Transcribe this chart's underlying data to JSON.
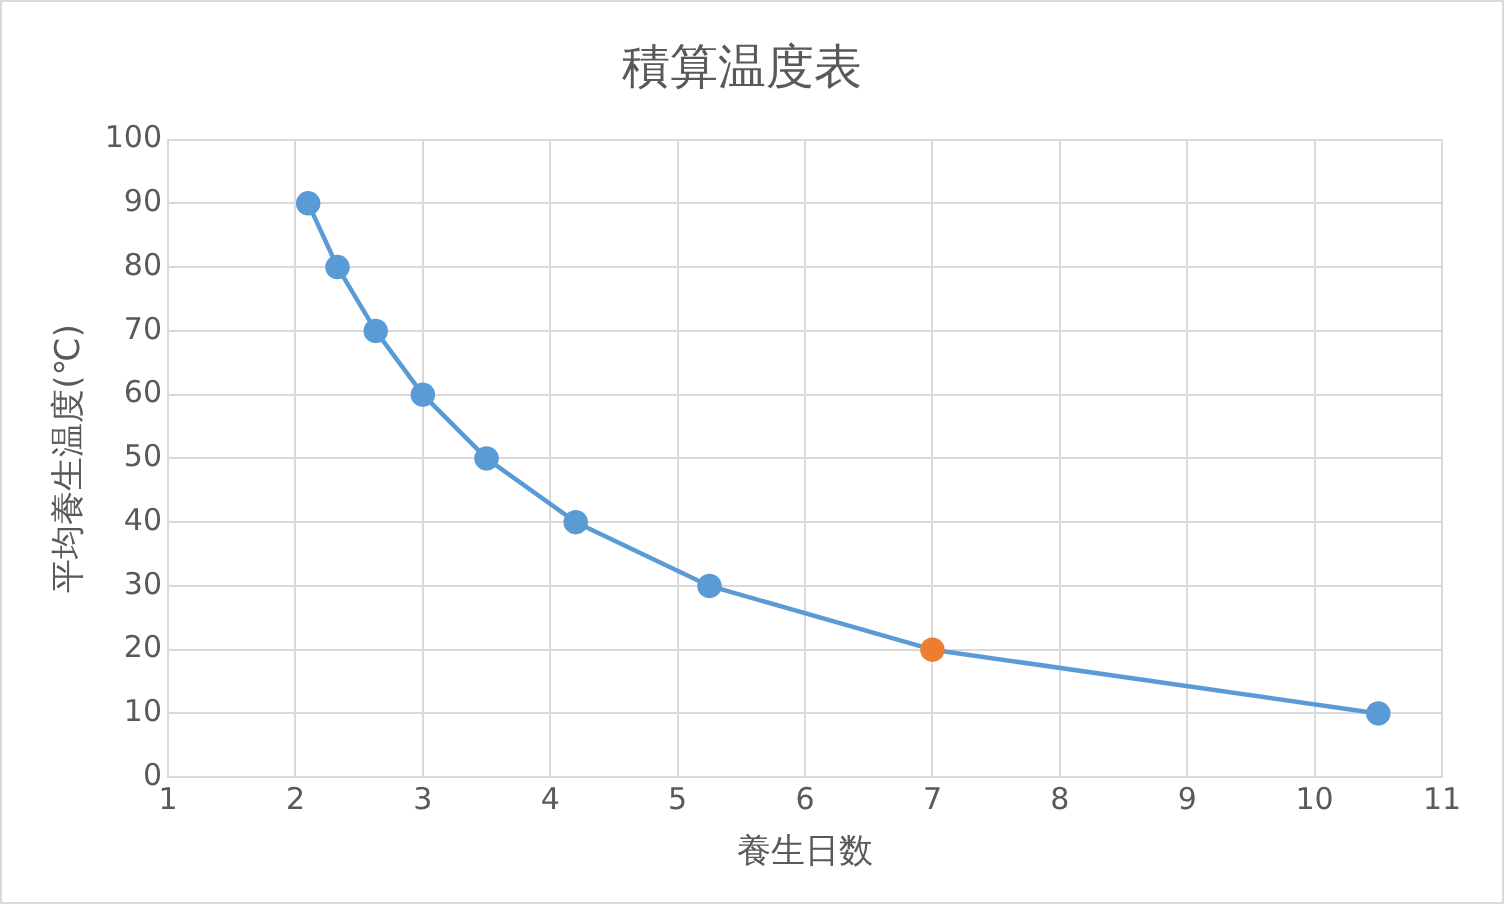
{
  "chart_data": {
    "type": "line",
    "title": "積算温度表",
    "xlabel": "養生日数",
    "ylabel": "平均養生温度(℃)",
    "x": [
      2.1,
      2.33,
      2.63,
      3,
      3.5,
      4.2,
      5.25,
      7,
      10.5
    ],
    "values": [
      90,
      80,
      70,
      60,
      50,
      40,
      30,
      20,
      10
    ],
    "color": "#5b9bd5",
    "colors": [
      "#5b9bd5",
      "#5b9bd5",
      "#5b9bd5",
      "#5b9bd5",
      "#5b9bd5",
      "#5b9bd5",
      "#5b9bd5",
      "#ed7d31",
      "#5b9bd5"
    ],
    "xlim": [
      1,
      11
    ],
    "xticks": [
      1,
      2,
      3,
      4,
      5,
      6,
      7,
      8,
      9,
      10,
      11
    ],
    "ylim": [
      0,
      100
    ],
    "yticks": [
      0,
      10,
      20,
      30,
      40,
      50,
      60,
      70,
      80,
      90,
      100
    ],
    "grid": true,
    "legend": false,
    "marker": "circle",
    "line_style": "solid"
  }
}
